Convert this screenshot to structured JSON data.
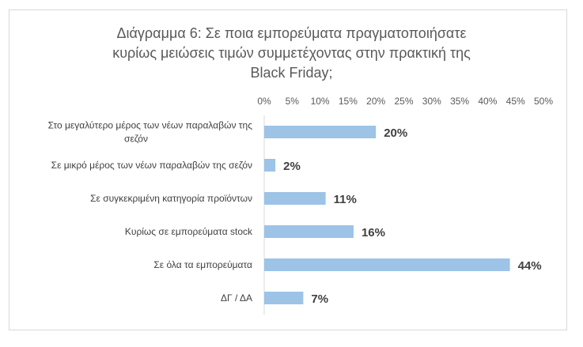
{
  "chart_data": {
    "type": "bar",
    "orientation": "horizontal",
    "title": [
      "Διάγραμμα 6: Σε ποια εμπορεύματα πραγματοποιήσατε",
      "κυρίως μειώσεις τιμών συμμετέχοντας στην πρακτική της",
      "Black Friday;"
    ],
    "categories": [
      [
        "Στο μεγαλύτερο μέρος των νέων παραλαβών της",
        "σεζόν"
      ],
      [
        "Σε μικρό μέρος των νέων παραλαβών της σεζόν"
      ],
      [
        "Σε συγκεκριμένη κατηγορία προϊόντων"
      ],
      [
        "Κυρίως σε εμπορεύματα stock"
      ],
      [
        "Σε όλα τα εμπορεύματα"
      ],
      [
        "ΔΓ / ΔΑ"
      ]
    ],
    "values": [
      20,
      2,
      11,
      16,
      44,
      7
    ],
    "data_labels": [
      "20%",
      "2%",
      "11%",
      "16%",
      "44%",
      "7%"
    ],
    "xlim": [
      0,
      50
    ],
    "xticks": [
      "0%",
      "5%",
      "10%",
      "15%",
      "20%",
      "25%",
      "30%",
      "35%",
      "40%",
      "45%",
      "50%"
    ],
    "x_axis_position": "top",
    "grid": false,
    "legend": "none",
    "bar_color": "#9dc3e6"
  }
}
